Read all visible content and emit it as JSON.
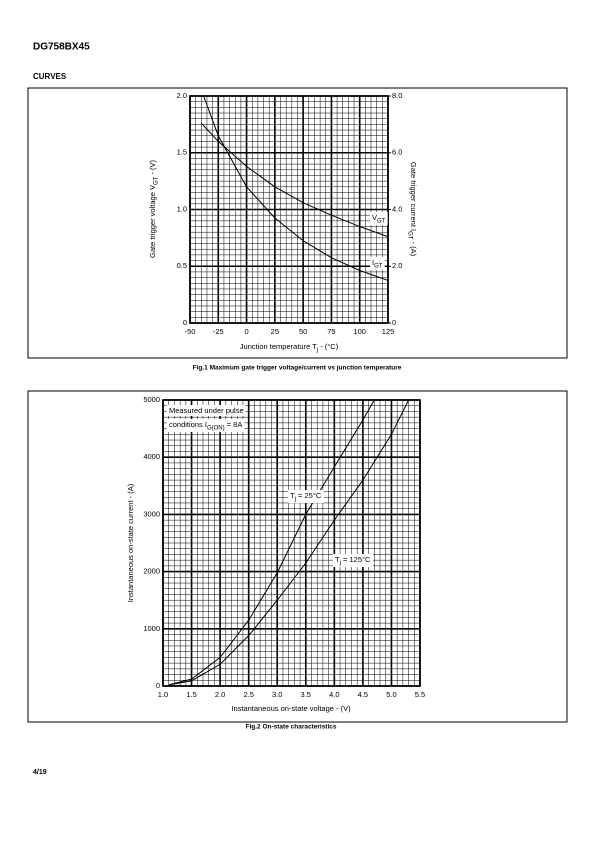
{
  "header": {
    "title": "DG758BX45",
    "section": "CURVES"
  },
  "footer": {
    "page": "4/19"
  },
  "chart_data": [
    {
      "type": "line",
      "title": "Fig.1 Maximum gate trigger voltage/current vs junction temperature",
      "x_label": [
        "Junction temperature T",
        "j",
        " - (°C)"
      ],
      "y_label": [
        "Gate trigger voltage V",
        "GT",
        " - (V)"
      ],
      "y2_label": [
        "Gate trigger current I",
        "GT",
        " - (A)"
      ],
      "xlim": [
        -50,
        125
      ],
      "xticks": [
        -50,
        -25,
        0,
        25,
        50,
        75,
        100,
        125
      ],
      "ylim": [
        0,
        2
      ],
      "yticks": [
        0,
        0.5,
        {
          "value": 1,
          "label": "1.0"
        },
        1.5,
        {
          "value": 2,
          "label": "2.0"
        }
      ],
      "y2lim": [
        0,
        8
      ],
      "y2ticks": [
        0,
        {
          "value": 2,
          "label": "2.0"
        },
        {
          "value": 4,
          "label": "4.0"
        },
        {
          "value": 6,
          "label": "6.0"
        },
        {
          "value": 8,
          "label": "8.0"
        }
      ],
      "grid": true,
      "minor_grid": {
        "x": 5,
        "y": 10
      },
      "series": [
        {
          "name": [
            "V",
            "GT"
          ],
          "color": "#000000",
          "axis": "y",
          "x": [
            -40,
            -25,
            0,
            25,
            50,
            75,
            100,
            125
          ],
          "values": [
            1.76,
            1.6,
            1.38,
            1.2,
            1.06,
            0.95,
            0.85,
            0.76
          ]
        },
        {
          "name": [
            "I",
            "GT"
          ],
          "color": "#000000",
          "axis": "y2",
          "x": [
            -38,
            -25,
            0,
            25,
            50,
            75,
            100,
            125
          ],
          "values": [
            8.0,
            6.6,
            4.8,
            3.7,
            2.9,
            2.3,
            1.85,
            1.5
          ]
        }
      ]
    },
    {
      "type": "line",
      "title": "Fig.2 On-state characteristics",
      "x_label": [
        "Instantaneous on-state voltage - (V)"
      ],
      "y_label": [
        "Instantaneous on-state current - (A)"
      ],
      "annotations": [
        [
          "Measured under pulse"
        ],
        [
          "conditions I",
          "G(ON)",
          " = 8A"
        ]
      ],
      "xlim": [
        1,
        5.5
      ],
      "xticks": [
        {
          "value": 1,
          "label": "1.0"
        },
        1.5,
        {
          "value": 2,
          "label": "2.0"
        },
        2.5,
        {
          "value": 3,
          "label": "3.0"
        },
        3.5,
        {
          "value": 4,
          "label": "4.0"
        },
        4.5,
        {
          "value": 5,
          "label": "5.0"
        },
        5.5
      ],
      "ylim": [
        0,
        5000
      ],
      "yticks": [
        0,
        1000,
        2000,
        3000,
        4000,
        5000
      ],
      "grid": true,
      "minor_grid": {
        "x": 5,
        "y": 10
      },
      "series": [
        {
          "name": [
            "T",
            "j",
            " = 25°C"
          ],
          "color": "#000000",
          "x": [
            1.1,
            1.5,
            2.0,
            2.5,
            3.0,
            3.5,
            4.0,
            4.5,
            4.7
          ],
          "values": [
            20,
            120,
            500,
            1150,
            1980,
            3000,
            3830,
            4650,
            5000
          ]
        },
        {
          "name": [
            "T",
            "j",
            " = 125°C"
          ],
          "color": "#000000",
          "x": [
            1.1,
            1.5,
            2.0,
            2.5,
            3.0,
            3.5,
            4.0,
            4.5,
            5.0,
            5.3
          ],
          "values": [
            20,
            90,
            380,
            880,
            1500,
            2150,
            2900,
            3600,
            4400,
            5000
          ]
        }
      ]
    }
  ]
}
